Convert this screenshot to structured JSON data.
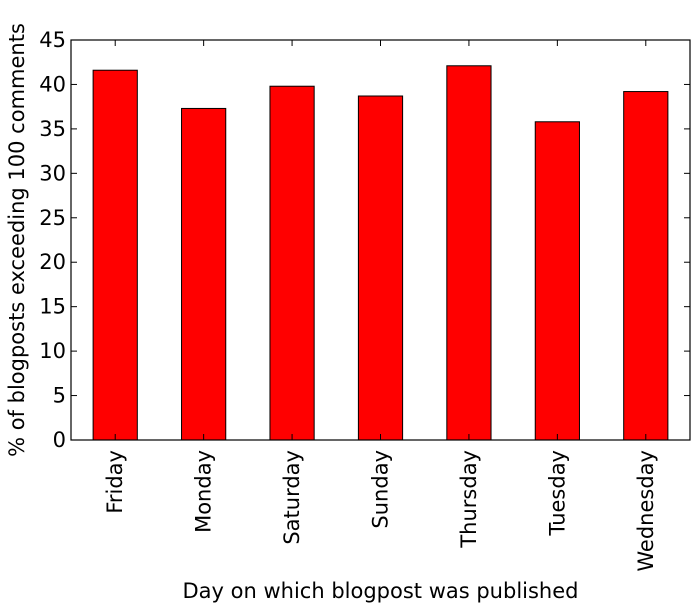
{
  "chart_data": {
    "type": "bar",
    "title": "",
    "xlabel": "Day on which blogpost was published",
    "ylabel": "% of blogposts exceeding 100 comments",
    "categories": [
      "Friday",
      "Monday",
      "Saturday",
      "Sunday",
      "Thursday",
      "Tuesday",
      "Wednesday"
    ],
    "values": [
      41.6,
      37.3,
      39.8,
      38.7,
      42.1,
      35.8,
      39.2
    ],
    "ylim": [
      0,
      45
    ],
    "yticks": [
      0,
      5,
      10,
      15,
      20,
      25,
      30,
      35,
      40,
      45
    ],
    "grid": false,
    "legend": "none",
    "bar_color": "#ff0000",
    "edge_color": "#000000"
  }
}
